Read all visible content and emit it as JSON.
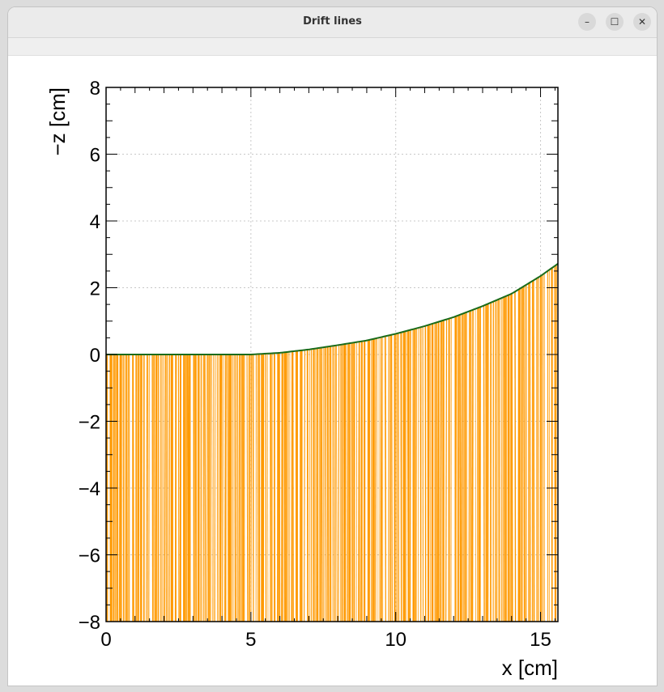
{
  "window": {
    "title": "Drift lines",
    "buttons": [
      "minimize-icon",
      "maximize-icon",
      "close-icon"
    ],
    "button_glyphs": [
      "–",
      "☐",
      "✕"
    ]
  },
  "chart_data": {
    "type": "line",
    "title": "",
    "xlabel": "x [cm]",
    "ylabel": "−z [cm]",
    "xlim": [
      0,
      15.6
    ],
    "ylim": [
      -8,
      8
    ],
    "x_ticks": [
      0,
      5,
      10,
      15
    ],
    "x_tick_labels": [
      "0",
      "5",
      "10",
      "15"
    ],
    "y_ticks": [
      -8,
      -6,
      -4,
      -2,
      0,
      2,
      4,
      6,
      8
    ],
    "y_tick_labels": [
      "−8",
      "−6",
      "−4",
      "−2",
      "0",
      "2",
      "4",
      "6",
      "8"
    ],
    "grid": true,
    "boundary_curve": {
      "color": "#1a6b1a",
      "x": [
        0,
        1,
        2,
        3,
        4,
        5,
        6,
        7,
        8,
        9,
        10,
        11,
        12,
        13,
        14,
        15,
        15.6
      ],
      "y": [
        0,
        0,
        0,
        0,
        0,
        0,
        0.05,
        0.15,
        0.28,
        0.42,
        0.62,
        0.85,
        1.12,
        1.45,
        1.82,
        2.35,
        2.72
      ]
    },
    "drift_lines": {
      "color": "#ff9900",
      "description_count": 220,
      "from": "boundary_curve",
      "to_y": -8
    }
  }
}
